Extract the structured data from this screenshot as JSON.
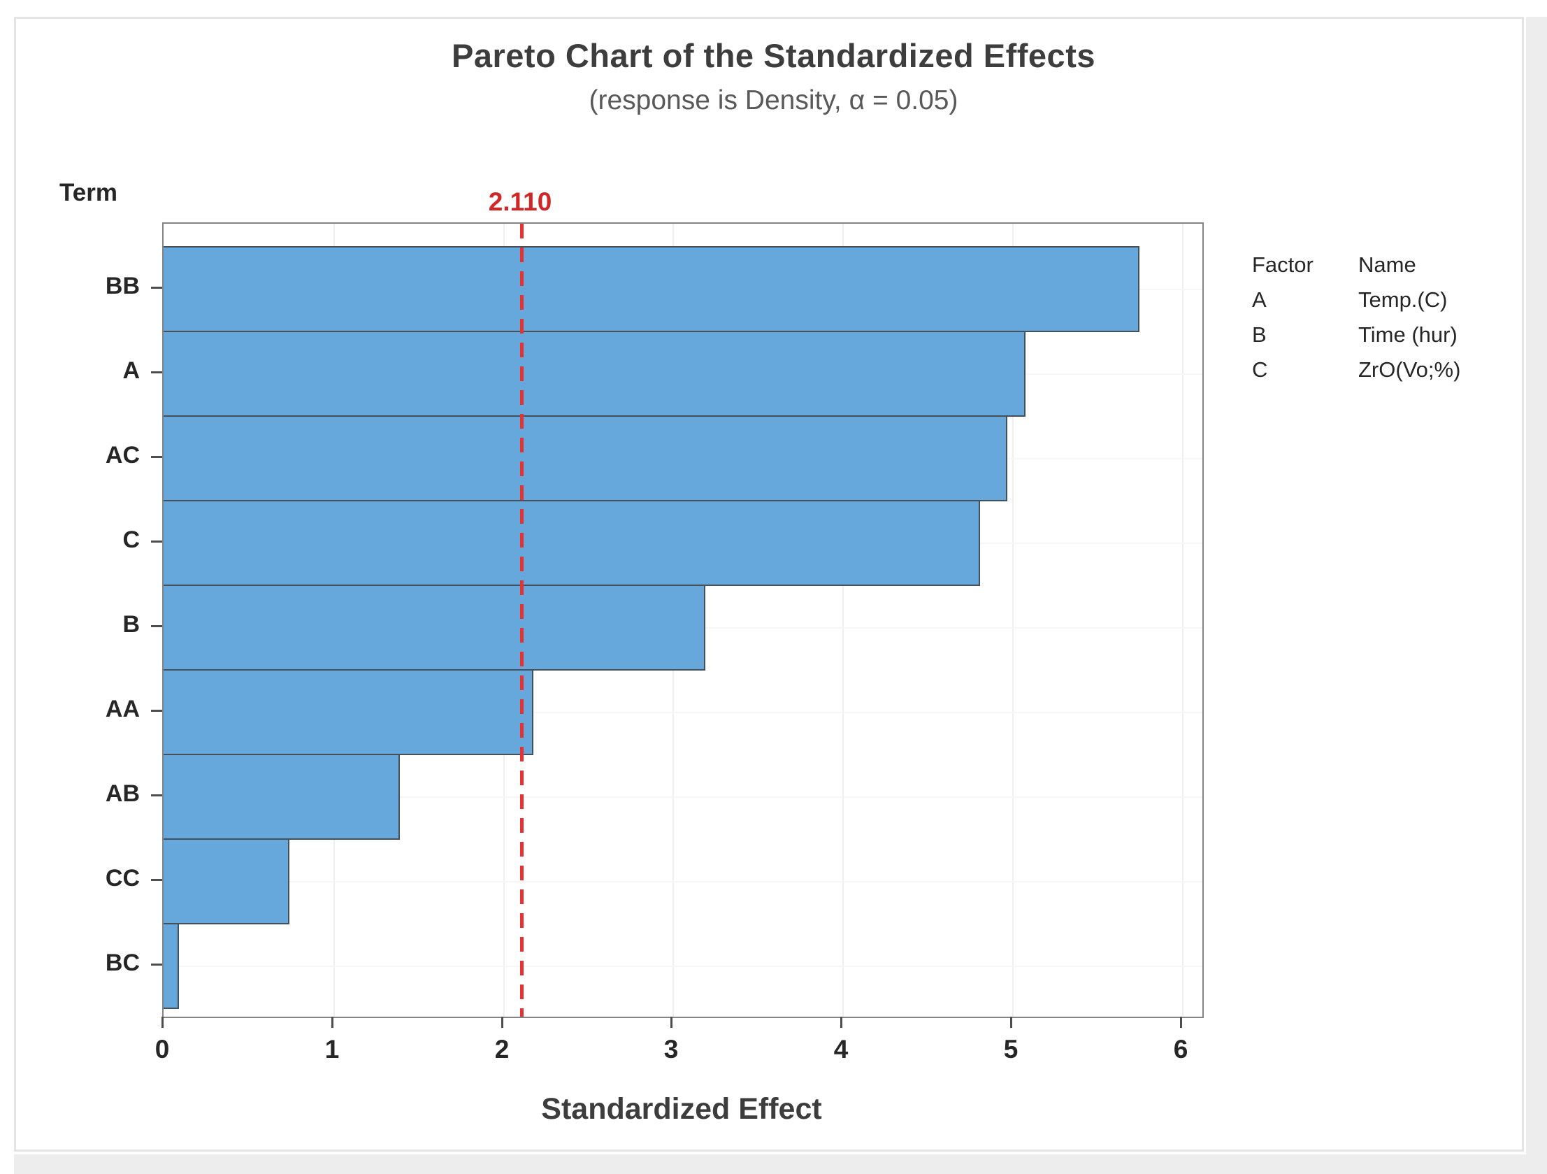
{
  "chart_data": {
    "type": "bar",
    "orientation": "horizontal",
    "title": "Pareto Chart of the Standardized Effects",
    "subtitle": "(response is Density, α = 0.05)",
    "xlabel": "Standardized Effect",
    "ylabel": "Term",
    "categories": [
      "BB",
      "A",
      "AC",
      "C",
      "B",
      "AA",
      "AB",
      "CC",
      "BC"
    ],
    "values": [
      5.75,
      5.08,
      4.97,
      4.81,
      3.19,
      2.18,
      1.39,
      0.74,
      0.09
    ],
    "xlim": [
      0,
      6.12
    ],
    "xticks": [
      0,
      1,
      2,
      3,
      4,
      5,
      6
    ],
    "grid": "faint vertical lines at integer ticks, faint horizontal lines at category centers",
    "legend_position": "right",
    "reference_line": {
      "value": 2.11,
      "label": "2.110",
      "style": "dashed",
      "color": "#cf2727"
    },
    "bar_fill_color": "#66a7dc",
    "bar_border_color": "#44505a"
  },
  "legend": {
    "factor_header": "Factor",
    "name_header": "Name",
    "rows": [
      {
        "factor": "A",
        "name": "Temp.(C)"
      },
      {
        "factor": "B",
        "name": "Time (hur)"
      },
      {
        "factor": "C",
        "name": "ZrO(Vo;%)"
      }
    ]
  }
}
